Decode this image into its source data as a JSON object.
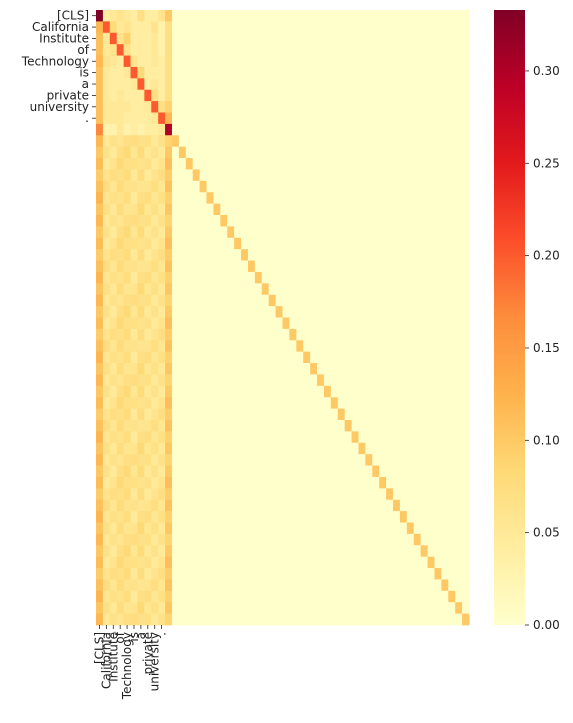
{
  "chart_data": {
    "type": "heatmap",
    "title": "",
    "xlabel": "",
    "ylabel": "",
    "tokens": [
      "[CLS]",
      "California",
      "Institute",
      "of",
      "Technology",
      "is",
      "a",
      "private",
      "university",
      "."
    ],
    "n_rows": 54,
    "n_cols": 54,
    "colormap": "YlOrRd",
    "colorbar": {
      "vmin": 0.0,
      "vmax": 0.333,
      "ticks": [
        "0.00",
        "0.05",
        "0.10",
        "0.15",
        "0.20",
        "0.25",
        "0.30"
      ]
    },
    "head_rows": [
      [
        0.333,
        0.04,
        0.05,
        0.06,
        0.05,
        0.04,
        0.07,
        0.04,
        0.04,
        0.06,
        0.1
      ],
      [
        0.12,
        0.2,
        0.08,
        0.05,
        0.06,
        0.04,
        0.04,
        0.04,
        0.06,
        0.03,
        0.07
      ],
      [
        0.11,
        0.05,
        0.2,
        0.06,
        0.09,
        0.04,
        0.04,
        0.04,
        0.05,
        0.03,
        0.07
      ],
      [
        0.11,
        0.05,
        0.06,
        0.2,
        0.06,
        0.04,
        0.04,
        0.04,
        0.05,
        0.03,
        0.07
      ],
      [
        0.12,
        0.06,
        0.05,
        0.04,
        0.2,
        0.06,
        0.04,
        0.04,
        0.05,
        0.04,
        0.07
      ],
      [
        0.11,
        0.05,
        0.04,
        0.04,
        0.05,
        0.2,
        0.08,
        0.04,
        0.04,
        0.04,
        0.07
      ],
      [
        0.11,
        0.05,
        0.04,
        0.04,
        0.04,
        0.05,
        0.2,
        0.04,
        0.05,
        0.04,
        0.07
      ],
      [
        0.11,
        0.05,
        0.04,
        0.05,
        0.04,
        0.04,
        0.04,
        0.2,
        0.07,
        0.04,
        0.07
      ],
      [
        0.11,
        0.05,
        0.05,
        0.05,
        0.05,
        0.04,
        0.04,
        0.05,
        0.2,
        0.07,
        0.09
      ],
      [
        0.11,
        0.05,
        0.05,
        0.05,
        0.04,
        0.04,
        0.04,
        0.04,
        0.05,
        0.2,
        0.12
      ],
      [
        0.17,
        0.03,
        0.03,
        0.05,
        0.03,
        0.04,
        0.03,
        0.04,
        0.04,
        0.05,
        0.3
      ]
    ],
    "tail_row_profile": [
      0.11,
      0.06,
      0.06,
      0.07,
      0.07,
      0.06,
      0.07,
      0.06,
      0.06,
      0.06,
      0.1
    ],
    "tail_diagonal_value": 0.1,
    "background_value": 0.0
  }
}
